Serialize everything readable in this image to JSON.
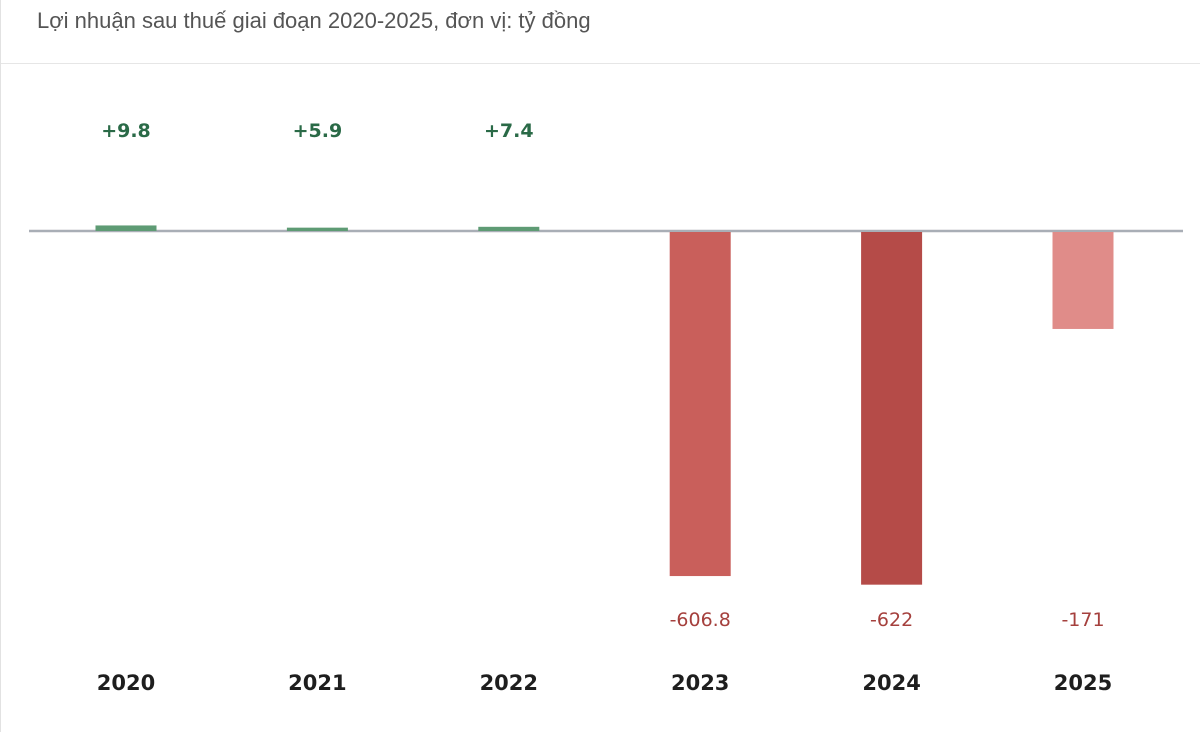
{
  "title": "Lợi nhuận sau thuế giai đoạn 2020-2025, đơn vị: tỷ đồng",
  "chart_data": {
    "type": "bar",
    "categories": [
      "2020",
      "2021",
      "2022",
      "2023",
      "2024",
      "2025"
    ],
    "values": [
      9.8,
      5.9,
      7.4,
      -606.8,
      -622,
      -171
    ],
    "data_labels": [
      "+9.8",
      "+5.9",
      "+7.4",
      "-606.8",
      "-622",
      "-171"
    ],
    "title": "Lợi nhuận sau thuế giai đoạn 2020-2025, đơn vị: tỷ đồng",
    "xlabel": "",
    "ylabel": "",
    "grid": false,
    "legend": "none",
    "colors": {
      "positive": "#5e9b74",
      "positive_label": "#2a6a47",
      "negative_bars": [
        "#c95f5b",
        "#b54b48",
        "#e08c89"
      ],
      "negative_label": "#a5403d",
      "baseline": "#a9aeb6"
    }
  }
}
